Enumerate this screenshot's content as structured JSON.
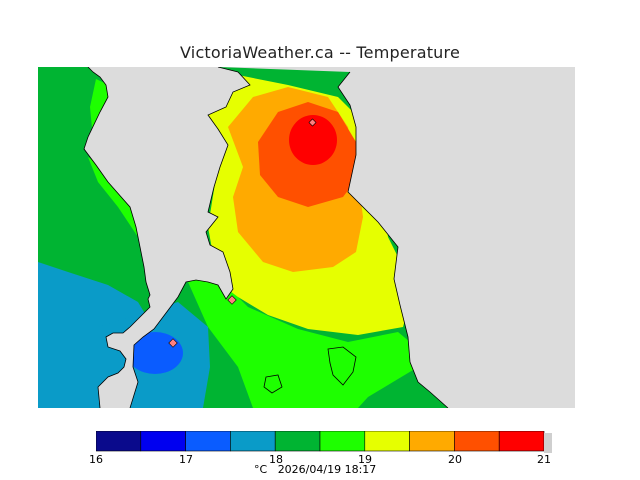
{
  "title": "VictoriaWeather.ca -- Temperature",
  "legend": {
    "ticks": [
      "16",
      "17",
      "18",
      "19",
      "20",
      "21"
    ],
    "bins": [
      {
        "from": 16.0,
        "to": 16.5,
        "color": "#0a0a8c"
      },
      {
        "from": 16.5,
        "to": 17.0,
        "color": "#0000f0"
      },
      {
        "from": 17.0,
        "to": 17.5,
        "color": "#0a5cff"
      },
      {
        "from": 17.5,
        "to": 18.0,
        "color": "#0a9bc8"
      },
      {
        "from": 18.0,
        "to": 18.5,
        "color": "#00b432"
      },
      {
        "from": 18.5,
        "to": 19.0,
        "color": "#1eff00"
      },
      {
        "from": 19.0,
        "to": 19.5,
        "color": "#e6ff00"
      },
      {
        "from": 19.5,
        "to": 20.0,
        "color": "#ffaa00"
      },
      {
        "from": 20.0,
        "to": 20.5,
        "color": "#ff5000"
      },
      {
        "from": 20.5,
        "to": 21.0,
        "color": "#ff0000"
      }
    ]
  },
  "footer": {
    "unit": "°C",
    "timestamp": "2026/04/19 18:17"
  },
  "colors": {
    "water": "#dcdcdc",
    "coast": "#000000"
  }
}
